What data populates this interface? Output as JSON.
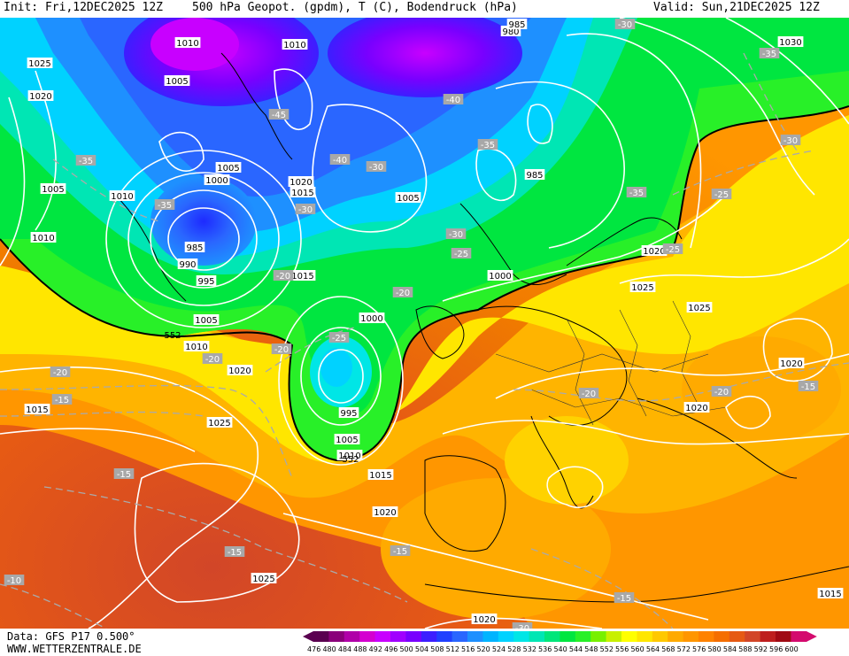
{
  "header": {
    "init": "Init: Fri,12DEC2025 12Z",
    "title": "500 hPa Geopot. (gpdm), T (C), Bodendruck (hPa)",
    "valid": "Valid: Sun,21DEC2025 12Z"
  },
  "footer": {
    "data_source": "Data: GFS P17 0.500°",
    "website": "WWW.WETTERZENTRALE.DE"
  },
  "legend": {
    "values": [
      "476",
      "480",
      "484",
      "488",
      "492",
      "496",
      "500",
      "504",
      "508",
      "512",
      "516",
      "520",
      "524",
      "528",
      "532",
      "536",
      "540",
      "544",
      "548",
      "552",
      "556",
      "560",
      "564",
      "568",
      "572",
      "576",
      "580",
      "584",
      "588",
      "592",
      "596",
      "600"
    ],
    "colors": [
      "#5a0050",
      "#8a007a",
      "#b000a8",
      "#d400d0",
      "#c800ff",
      "#a000ff",
      "#7800ff",
      "#3c1eff",
      "#2040ff",
      "#2a66ff",
      "#1e90ff",
      "#00b4ff",
      "#00d2ff",
      "#00e6e6",
      "#00e6b4",
      "#00e67a",
      "#00e640",
      "#28f028",
      "#78f000",
      "#c8f000",
      "#ffff00",
      "#ffe600",
      "#ffc800",
      "#ffaa00",
      "#ff9600",
      "#ff8200",
      "#f56e00",
      "#e65a14",
      "#d24628",
      "#be1e1e",
      "#a00a14",
      "#d40a6e"
    ]
  },
  "map": {
    "pressure_labels": [
      {
        "text": "1010"
      },
      {
        "text": "1010"
      },
      {
        "text": "1030"
      },
      {
        "text": "1025"
      },
      {
        "text": "1005"
      },
      {
        "text": "1020"
      },
      {
        "text": "1005"
      },
      {
        "text": "1000"
      },
      {
        "text": "1020"
      },
      {
        "text": "1015"
      },
      {
        "text": "985"
      },
      {
        "text": "1005"
      },
      {
        "text": "1010"
      },
      {
        "text": "1005"
      },
      {
        "text": "1010"
      },
      {
        "text": "985"
      },
      {
        "text": "990"
      },
      {
        "text": "995"
      },
      {
        "text": "1015"
      },
      {
        "text": "1000"
      },
      {
        "text": "1020"
      },
      {
        "text": "1025"
      },
      {
        "text": "1025"
      },
      {
        "text": "1005"
      },
      {
        "text": "1010"
      },
      {
        "text": "1000"
      },
      {
        "text": "1020"
      },
      {
        "text": "1015"
      },
      {
        "text": "1020"
      },
      {
        "text": "1020"
      },
      {
        "text": "995"
      },
      {
        "text": "1005"
      },
      {
        "text": "1010"
      },
      {
        "text": "1015"
      },
      {
        "text": "1025"
      },
      {
        "text": "1020"
      },
      {
        "text": "1025"
      },
      {
        "text": "1020"
      },
      {
        "text": "1015"
      },
      {
        "text": "980"
      },
      {
        "text": "985"
      }
    ],
    "temp_labels": [
      {
        "text": "-30"
      },
      {
        "text": "-35"
      },
      {
        "text": "-40"
      },
      {
        "text": "-45"
      },
      {
        "text": "-40"
      },
      {
        "text": "-35"
      },
      {
        "text": "-35"
      },
      {
        "text": "-30"
      },
      {
        "text": "-35"
      },
      {
        "text": "-35"
      },
      {
        "text": "-30"
      },
      {
        "text": "-30"
      },
      {
        "text": "-30"
      },
      {
        "text": "-25"
      },
      {
        "text": "-25"
      },
      {
        "text": "-20"
      },
      {
        "text": "-20"
      },
      {
        "text": "-25"
      },
      {
        "text": "-20"
      },
      {
        "text": "-20"
      },
      {
        "text": "-20"
      },
      {
        "text": "-20"
      },
      {
        "text": "-15"
      },
      {
        "text": "-15"
      },
      {
        "text": "-15"
      },
      {
        "text": "-15"
      },
      {
        "text": "-15"
      },
      {
        "text": "-20"
      },
      {
        "text": "-10"
      },
      {
        "text": "-15"
      },
      {
        "text": "-25"
      },
      {
        "text": "-30"
      }
    ],
    "geopot_labels": [
      {
        "text": "552"
      },
      {
        "text": "552"
      }
    ]
  }
}
